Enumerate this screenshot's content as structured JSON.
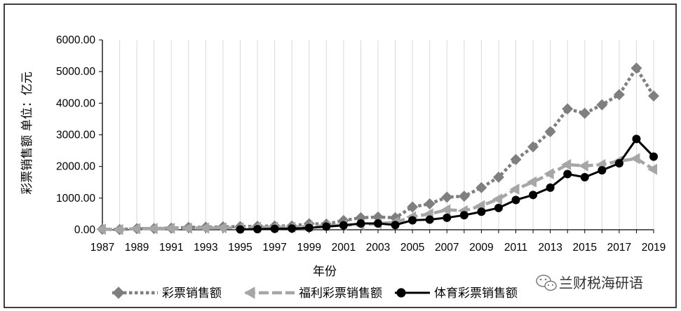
{
  "chart_data": {
    "type": "line",
    "xlabel": "年份",
    "ylabel": "彩票销售额 单位：亿元",
    "ylim": [
      0,
      6000
    ],
    "y_ticks": [
      "0.00",
      "1000.00",
      "2000.00",
      "3000.00",
      "4000.00",
      "5000.00",
      "6000.00"
    ],
    "x_ticks": [
      "1987",
      "1989",
      "1991",
      "1993",
      "1995",
      "1997",
      "1999",
      "2001",
      "2003",
      "2005",
      "2007",
      "2009",
      "2011",
      "2013",
      "2015",
      "2017",
      "2019"
    ],
    "grid": "vertical",
    "legend_position": "bottom",
    "x": [
      1987,
      1988,
      1989,
      1990,
      1991,
      1992,
      1993,
      1994,
      1995,
      1996,
      1997,
      1998,
      1999,
      2000,
      2001,
      2002,
      2003,
      2004,
      2005,
      2006,
      2007,
      2008,
      2009,
      2010,
      2011,
      2012,
      2013,
      2014,
      2015,
      2016,
      2017,
      2018,
      2019
    ],
    "series": [
      {
        "name": "彩票销售额",
        "color": "#7f7f7f",
        "line_style": "dotted",
        "marker": "diamond",
        "values": [
          17,
          6,
          37,
          40,
          50,
          75,
          80,
          90,
          100,
          110,
          120,
          120,
          190,
          180,
          290,
          380,
          400,
          380,
          720,
          820,
          1030,
          1060,
          1330,
          1660,
          2220,
          2620,
          3100,
          3820,
          3680,
          3950,
          4270,
          5110,
          4230
        ]
      },
      {
        "name": "福利彩票销售额",
        "color": "#a6a6a6",
        "line_style": "dashed",
        "marker": "arrow-left",
        "values": [
          17,
          6,
          37,
          40,
          45,
          50,
          55,
          60,
          60,
          80,
          80,
          80,
          110,
          120,
          150,
          160,
          200,
          230,
          410,
          500,
          630,
          600,
          760,
          970,
          1280,
          1510,
          1770,
          2060,
          2020,
          2060,
          2170,
          2250,
          1910
        ]
      },
      {
        "name": "体育彩票销售额",
        "color": "#000000",
        "line_style": "solid",
        "marker": "circle",
        "values": [
          null,
          null,
          null,
          null,
          null,
          null,
          null,
          null,
          10,
          20,
          30,
          40,
          60,
          100,
          140,
          200,
          200,
          150,
          300,
          320,
          380,
          460,
          570,
          690,
          940,
          1100,
          1330,
          1760,
          1660,
          1880,
          2100,
          2870,
          2310
        ]
      }
    ]
  },
  "watermark": {
    "icon": "wechat-icon",
    "text": "兰财税海研语"
  }
}
